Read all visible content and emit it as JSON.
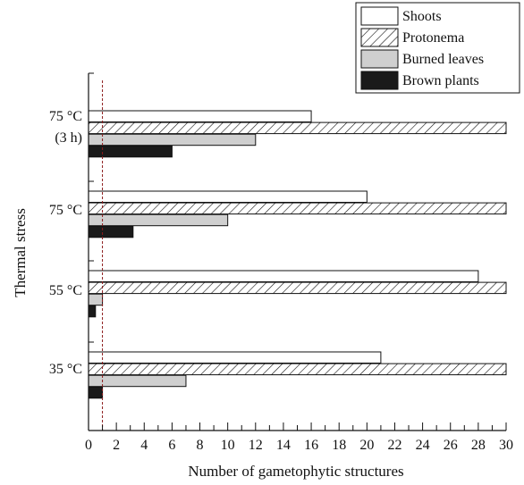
{
  "chart_data": {
    "type": "bar",
    "orientation": "horizontal",
    "title": "",
    "xlabel": "Number of gametophytic structures",
    "ylabel": "Thermal stress",
    "xlim": [
      0,
      30
    ],
    "x_ticks": [
      "0",
      "2",
      "4",
      "6",
      "8",
      "10",
      "12",
      "14",
      "16",
      "18",
      "20",
      "22",
      "24",
      "26",
      "28",
      "30"
    ],
    "categories": [
      {
        "line1": "75 °C",
        "line2": "(3 h)"
      },
      {
        "line1": "75 °C",
        "line2": ""
      },
      {
        "line1": "55 °C",
        "line2": ""
      },
      {
        "line1": "35 °C",
        "line2": ""
      }
    ],
    "series": [
      {
        "name": "Shoots",
        "fill": "white",
        "values": [
          16,
          20,
          28,
          21
        ]
      },
      {
        "name": "Protonema",
        "fill": "hatch",
        "values": [
          30,
          30,
          30,
          30
        ]
      },
      {
        "name": "Burned leaves",
        "fill": "#cfcfcf",
        "values": [
          12,
          10,
          1,
          7
        ]
      },
      {
        "name": "Brown plants",
        "fill": "#1a1a1a",
        "values": [
          6,
          3.2,
          0.5,
          1
        ]
      }
    ],
    "reference_line": {
      "x": 1,
      "color": "#8b1a1a",
      "style": "dashed"
    },
    "legend_position": "top-right",
    "grid": false
  }
}
